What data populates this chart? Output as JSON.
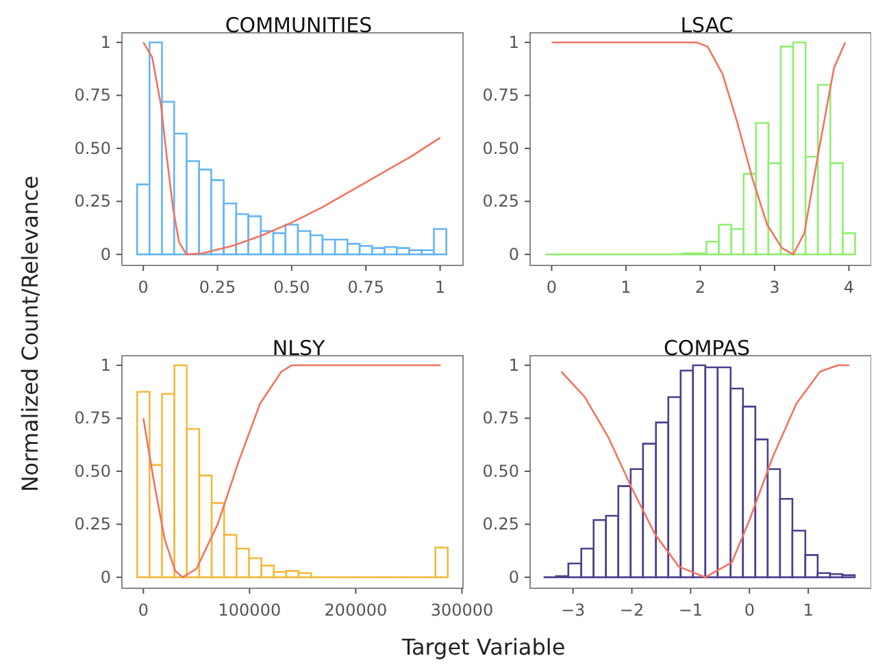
{
  "chart_data": [
    {
      "type": "histogram",
      "title": "COMMUNITIES",
      "ylabel": "Normalized Count/Relevance",
      "xlabel": "Target Variable",
      "marker": "none",
      "xlim": [
        -0.072,
        1.077
      ],
      "ylim": [
        -0.052,
        1.045
      ],
      "xticks": [
        {
          "value": 0,
          "label": "0"
        },
        {
          "value": 0.25,
          "label": "0.25"
        },
        {
          "value": 0.5,
          "label": "0.50"
        },
        {
          "value": 0.75,
          "label": "0.75"
        },
        {
          "value": 1,
          "label": "1"
        }
      ],
      "yticks": [
        {
          "value": 0,
          "label": "0"
        },
        {
          "value": 0.25,
          "label": "0.25"
        },
        {
          "value": 0.5,
          "label": "0.50"
        },
        {
          "value": 0.75,
          "label": "0.75"
        },
        {
          "value": 1,
          "label": "1"
        }
      ],
      "series": [
        {
          "type": "histogram",
          "color": "#64b5f6",
          "bins": [
            -0.021,
            0.021,
            0.063,
            0.104,
            0.146,
            0.188,
            0.229,
            0.271,
            0.313,
            0.354,
            0.396,
            0.438,
            0.479,
            0.521,
            0.563,
            0.604,
            0.646,
            0.688,
            0.729,
            0.771,
            0.813,
            0.854,
            0.896,
            0.938,
            0.979,
            1.021
          ],
          "values": [
            0.33,
            1.0,
            0.72,
            0.57,
            0.44,
            0.4,
            0.35,
            0.24,
            0.19,
            0.18,
            0.11,
            0.1,
            0.14,
            0.11,
            0.09,
            0.07,
            0.07,
            0.05,
            0.04,
            0.03,
            0.035,
            0.03,
            0.02,
            0.02,
            0.12
          ]
        },
        {
          "type": "line",
          "color": "#f4725e",
          "x": [
            0,
            0.03,
            0.06,
            0.08,
            0.1,
            0.12,
            0.145,
            0.2,
            0.3,
            0.4,
            0.5,
            0.6,
            0.7,
            0.8,
            0.9,
            1
          ],
          "values": [
            1,
            0.93,
            0.7,
            0.45,
            0.22,
            0.06,
            0,
            0.005,
            0.04,
            0.09,
            0.15,
            0.22,
            0.3,
            0.38,
            0.46,
            0.55
          ]
        }
      ]
    },
    {
      "type": "histogram",
      "title": "LSAC",
      "marker": "none",
      "xlim": [
        -0.29,
        4.3
      ],
      "ylim": [
        -0.052,
        1.045
      ],
      "xticks": [
        {
          "value": 0,
          "label": "0"
        },
        {
          "value": 1,
          "label": "1"
        },
        {
          "value": 2,
          "label": "2"
        },
        {
          "value": 3,
          "label": "3"
        },
        {
          "value": 4,
          "label": "4"
        }
      ],
      "yticks": [
        {
          "value": 0,
          "label": "0"
        },
        {
          "value": 0.25,
          "label": "0.25"
        },
        {
          "value": 0.5,
          "label": "0.50"
        },
        {
          "value": 0.75,
          "label": "0.75"
        },
        {
          "value": 1,
          "label": "1"
        }
      ],
      "series": [
        {
          "type": "histogram",
          "color": "#90ee70",
          "bins": [
            -0.083,
            0.083,
            0.25,
            0.417,
            0.583,
            0.75,
            0.917,
            1.083,
            1.25,
            1.417,
            1.583,
            1.75,
            1.917,
            2.083,
            2.25,
            2.417,
            2.583,
            2.75,
            2.917,
            3.083,
            3.25,
            3.417,
            3.583,
            3.75,
            3.917,
            4.083
          ],
          "values": [
            0,
            0,
            0,
            0,
            0,
            0,
            0,
            0,
            0,
            0,
            0,
            0.005,
            0.005,
            0.06,
            0.14,
            0.12,
            0.38,
            0.62,
            0.43,
            0.98,
            1.0,
            0.46,
            0.8,
            0.43,
            0.1
          ]
        },
        {
          "type": "line",
          "color": "#f4725e",
          "x": [
            0,
            1,
            1.95,
            2.1,
            2.3,
            2.5,
            2.7,
            2.9,
            3.1,
            3.25,
            3.4,
            3.6,
            3.8,
            3.95
          ],
          "values": [
            1,
            1,
            1,
            0.98,
            0.85,
            0.62,
            0.36,
            0.14,
            0.03,
            0,
            0.1,
            0.5,
            0.88,
            1
          ]
        }
      ]
    },
    {
      "type": "histogram",
      "title": "NLSY",
      "marker": "none",
      "xlim": [
        -20200,
        301000
      ],
      "ylim": [
        -0.052,
        1.045
      ],
      "xticks": [
        {
          "value": 0,
          "label": "0"
        },
        {
          "value": 100000,
          "label": "100000"
        },
        {
          "value": 200000,
          "label": "200000"
        },
        {
          "value": 300000,
          "label": "300000"
        }
      ],
      "yticks": [
        {
          "value": 0,
          "label": "0"
        },
        {
          "value": 0.25,
          "label": "0.25"
        },
        {
          "value": 0.5,
          "label": "0.50"
        },
        {
          "value": 0.75,
          "label": "0.75"
        },
        {
          "value": 1,
          "label": "1"
        }
      ],
      "series": [
        {
          "type": "histogram",
          "color": "#f5b83d",
          "bins": [
            -5850,
            5850,
            17550,
            29250,
            40950,
            52650,
            64350,
            76050,
            87750,
            99450,
            111150,
            122850,
            134550,
            146250,
            157950,
            169650,
            181350,
            193050,
            204750,
            216450,
            228150,
            239850,
            251550,
            263250,
            274950,
            286650
          ],
          "values": [
            0.875,
            0.53,
            0.865,
            1.0,
            0.7,
            0.48,
            0.35,
            0.2,
            0.135,
            0.09,
            0.055,
            0.025,
            0.03,
            0.02,
            0,
            0,
            0,
            0,
            0,
            0,
            0,
            0,
            0,
            0,
            0.14
          ]
        },
        {
          "type": "line",
          "color": "#f4725e",
          "x": [
            0,
            10000,
            20000,
            30000,
            37000,
            50000,
            70000,
            90000,
            110000,
            130000,
            140000,
            200000,
            280000
          ],
          "values": [
            0.75,
            0.45,
            0.18,
            0.03,
            0,
            0.04,
            0.25,
            0.55,
            0.82,
            0.97,
            1,
            1,
            1
          ]
        }
      ]
    },
    {
      "type": "histogram",
      "title": "COMPAS",
      "marker": "none",
      "xlim": [
        -3.73,
        2.07
      ],
      "ylim": [
        -0.052,
        1.045
      ],
      "xticks": [
        {
          "value": -3,
          "label": "−3"
        },
        {
          "value": -2,
          "label": "−2"
        },
        {
          "value": -1,
          "label": "−1"
        },
        {
          "value": 0,
          "label": "0"
        },
        {
          "value": 1,
          "label": "1"
        }
      ],
      "yticks": [
        {
          "value": 0,
          "label": "0"
        },
        {
          "value": 0.25,
          "label": "0.25"
        },
        {
          "value": 0.5,
          "label": "0.50"
        },
        {
          "value": 0.75,
          "label": "0.75"
        },
        {
          "value": 1,
          "label": "1"
        }
      ],
      "series": [
        {
          "type": "histogram",
          "color": "#4b3f8c",
          "bins": [
            -3.5,
            -3.29,
            -3.08,
            -2.86,
            -2.65,
            -2.44,
            -2.23,
            -2.02,
            -1.81,
            -1.59,
            -1.38,
            -1.17,
            -0.96,
            -0.75,
            -0.54,
            -0.32,
            -0.11,
            0.1,
            0.31,
            0.52,
            0.73,
            0.95,
            1.16,
            1.37,
            1.58,
            1.79
          ],
          "values": [
            0,
            0.005,
            0.065,
            0.135,
            0.27,
            0.29,
            0.43,
            0.51,
            0.63,
            0.73,
            0.85,
            0.975,
            1.0,
            0.99,
            0.99,
            0.89,
            0.805,
            0.65,
            0.51,
            0.37,
            0.22,
            0.105,
            0.02,
            0.015,
            0.01
          ]
        },
        {
          "type": "line",
          "color": "#f4725e",
          "x": [
            -3.2,
            -2.8,
            -2.4,
            -2,
            -1.6,
            -1.2,
            -0.75,
            -0.3,
            0,
            0.4,
            0.8,
            1.2,
            1.5,
            1.7
          ],
          "values": [
            0.97,
            0.85,
            0.66,
            0.42,
            0.2,
            0.05,
            0,
            0.07,
            0.27,
            0.57,
            0.82,
            0.97,
            1,
            1
          ]
        }
      ]
    }
  ]
}
